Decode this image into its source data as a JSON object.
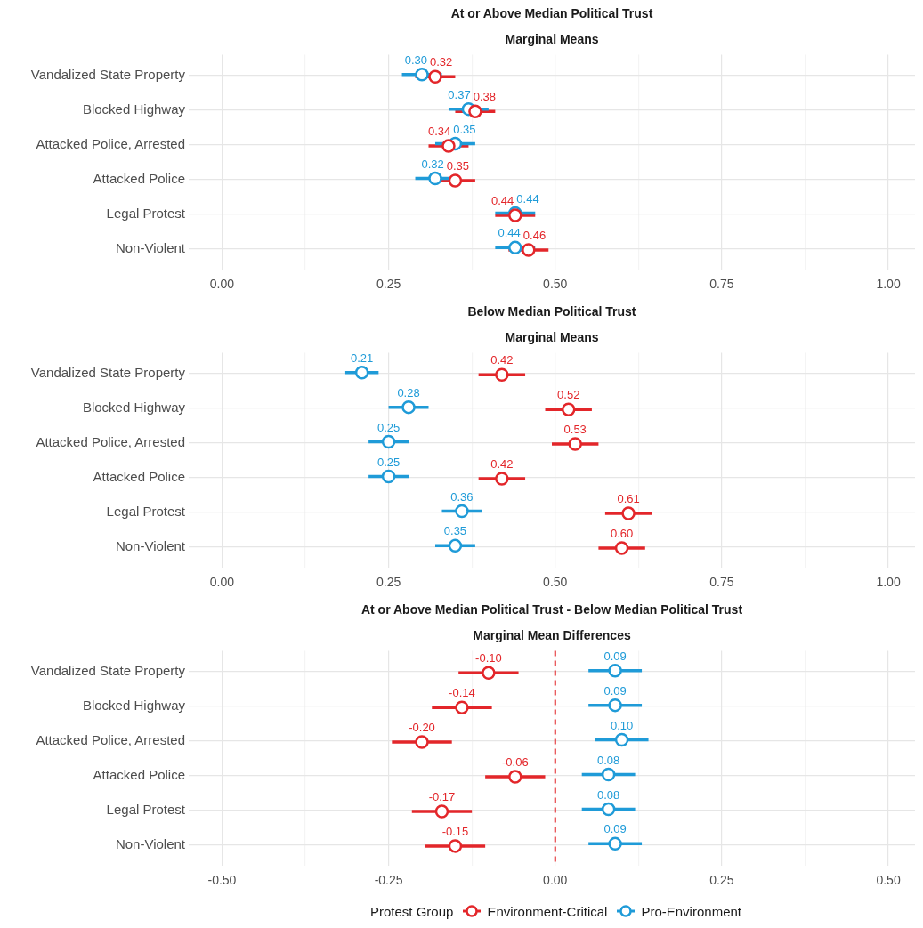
{
  "chart_data": [
    {
      "type": "scatter",
      "title": "At or Above Median Political Trust",
      "subtitle": "Marginal Means",
      "orientation": "horizontal",
      "categories": [
        "Vandalized State Property",
        "Blocked Highway",
        "Attacked Police, Arrested",
        "Attacked Police",
        "Legal Protest",
        "Non-Violent"
      ],
      "series": [
        {
          "color": "#e3262a",
          "values": [
            0.32,
            0.38,
            0.34,
            0.35,
            0.44,
            0.46
          ],
          "value_labels": [
            "0.32",
            "0.38",
            "0.34",
            "0.35",
            "0.44",
            "0.46"
          ],
          "errors": [
            0.03,
            0.03,
            0.03,
            0.03,
            0.03,
            0.03
          ]
        },
        {
          "color": "#1f9bd8",
          "values": [
            0.3,
            0.37,
            0.35,
            0.32,
            0.44,
            0.44
          ],
          "value_labels": [
            "0.30",
            "0.37",
            "0.35",
            "0.32",
            "0.44",
            "0.44"
          ],
          "errors": [
            0.03,
            0.03,
            0.03,
            0.03,
            0.03,
            0.03
          ]
        }
      ],
      "xlim": [
        -0.05,
        1.04
      ],
      "xticks": [
        {
          "value": 0,
          "label": "0.00"
        },
        {
          "value": 0.125,
          "label": null
        },
        {
          "value": 0.25,
          "label": "0.25"
        },
        {
          "value": 0.375,
          "label": null
        },
        {
          "value": 0.5,
          "label": "0.50"
        },
        {
          "value": 0.625,
          "label": null
        },
        {
          "value": 0.75,
          "label": "0.75"
        },
        {
          "value": 0.875,
          "label": null
        },
        {
          "value": 1,
          "label": "1.00"
        }
      ],
      "grid": true,
      "marker": "circle"
    },
    {
      "type": "scatter",
      "title": "Below Median Political Trust",
      "subtitle": "Marginal Means",
      "orientation": "horizontal",
      "categories": [
        "Vandalized State Property",
        "Blocked Highway",
        "Attacked Police, Arrested",
        "Attacked Police",
        "Legal Protest",
        "Non-Violent"
      ],
      "series": [
        {
          "color": "#e3262a",
          "values": [
            0.42,
            0.52,
            0.53,
            0.42,
            0.61,
            0.6
          ],
          "value_labels": [
            "0.42",
            "0.52",
            "0.53",
            "0.42",
            "0.61",
            "0.60"
          ],
          "errors": [
            0.035,
            0.035,
            0.035,
            0.035,
            0.035,
            0.035
          ]
        },
        {
          "color": "#1f9bd8",
          "values": [
            0.21,
            0.28,
            0.25,
            0.25,
            0.36,
            0.35
          ],
          "value_labels": [
            "0.21",
            "0.28",
            "0.25",
            "0.25",
            "0.36",
            "0.35"
          ],
          "errors": [
            0.025,
            0.03,
            0.03,
            0.03,
            0.03,
            0.03
          ]
        }
      ],
      "xlim": [
        -0.05,
        1.04
      ],
      "xticks": [
        {
          "value": 0,
          "label": "0.00"
        },
        {
          "value": 0.125,
          "label": null
        },
        {
          "value": 0.25,
          "label": "0.25"
        },
        {
          "value": 0.375,
          "label": null
        },
        {
          "value": 0.5,
          "label": "0.50"
        },
        {
          "value": 0.625,
          "label": null
        },
        {
          "value": 0.75,
          "label": "0.75"
        },
        {
          "value": 0.875,
          "label": null
        },
        {
          "value": 1,
          "label": "1.00"
        }
      ],
      "grid": true,
      "marker": "circle"
    },
    {
      "type": "scatter",
      "title": "At or Above Median Political Trust - Below Median Political Trust",
      "subtitle": "Marginal Mean Differences",
      "orientation": "horizontal",
      "categories": [
        "Vandalized State Property",
        "Blocked Highway",
        "Attacked Police, Arrested",
        "Attacked Police",
        "Legal Protest",
        "Non-Violent"
      ],
      "series": [
        {
          "name": "Environment-Critical",
          "color": "#e3262a",
          "values": [
            -0.1,
            -0.14,
            -0.2,
            -0.06,
            -0.17,
            -0.15
          ],
          "value_labels": [
            "-0.10",
            "-0.14",
            "-0.20",
            "-0.06",
            "-0.17",
            "-0.15"
          ],
          "errors": [
            0.045,
            0.045,
            0.045,
            0.045,
            0.045,
            0.045
          ]
        },
        {
          "name": "Pro-Environment",
          "color": "#1f9bd8",
          "values": [
            0.09,
            0.09,
            0.1,
            0.08,
            0.08,
            0.09
          ],
          "value_labels": [
            "0.09",
            "0.09",
            "0.10",
            "0.08",
            "0.08",
            "0.09"
          ],
          "errors": [
            0.04,
            0.04,
            0.04,
            0.04,
            0.04,
            0.04
          ]
        }
      ],
      "xlim": [
        -0.55,
        0.54
      ],
      "xticks": [
        {
          "value": -0.5,
          "label": "-0.50"
        },
        {
          "value": -0.375,
          "label": null
        },
        {
          "value": -0.25,
          "label": "-0.25"
        },
        {
          "value": -0.125,
          "label": null
        },
        {
          "value": 0,
          "label": "0.00"
        },
        {
          "value": 0.125,
          "label": null
        },
        {
          "value": 0.25,
          "label": "0.25"
        },
        {
          "value": 0.375,
          "label": null
        },
        {
          "value": 0.5,
          "label": "0.50"
        }
      ],
      "ref_lines": [
        {
          "axis": "x",
          "value": 0,
          "color": "#e3262a",
          "line_style": "dashed"
        }
      ],
      "grid": true,
      "marker": "circle",
      "legend": "bottom",
      "legend_title": "Protest Group"
    }
  ]
}
